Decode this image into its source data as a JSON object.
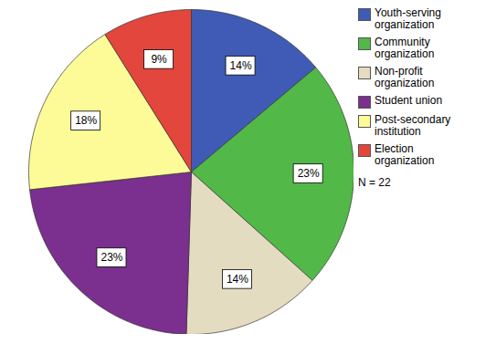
{
  "chart_data": {
    "type": "pie",
    "categories": [
      "Youth-serving organization",
      "Community organization",
      "Non-profit organization",
      "Student union",
      "Post-secondary institution",
      "Election organization"
    ],
    "values": [
      14,
      23,
      14,
      23,
      18,
      9
    ],
    "value_labels": [
      "14%",
      "23%",
      "14%",
      "23%",
      "18%",
      "9%"
    ],
    "colors": [
      "#3f5bb5",
      "#52b848",
      "#e3dcc1",
      "#7b2f8e",
      "#fdfb98",
      "#e2463c"
    ],
    "data_labels": true,
    "legend": "right",
    "annotation": "N = 22"
  }
}
